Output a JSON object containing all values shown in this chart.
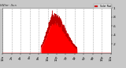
{
  "title_left": "kW/m² -Sun",
  "legend_label": "Solar Rad",
  "legend_color": "#ff0000",
  "bg_color": "#c8c8c8",
  "plot_bg_color": "#ffffff",
  "fill_color": "#ff0000",
  "line_color": "#bb0000",
  "grid_color": "#888888",
  "num_points": 1440,
  "peak_hour": 11.5,
  "peak_value": 0.9,
  "sunrise_hour": 8.5,
  "sunset_hour": 16.5,
  "ylim": [
    0,
    1.0
  ],
  "xlim": [
    0,
    1440
  ],
  "tick_hours": [
    0,
    2,
    4,
    6,
    8,
    10,
    12,
    14,
    16,
    18,
    20,
    22,
    24
  ],
  "tick_labels": [
    "12a",
    "2a",
    "4a",
    "6a",
    "8a",
    "10a",
    "12p",
    "2p",
    "4p",
    "6p",
    "8p",
    "10p",
    "12a"
  ],
  "yticks": [
    0.2,
    0.4,
    0.6,
    0.8,
    1.0
  ],
  "ytick_labels": [
    ".2",
    ".4",
    ".6",
    ".8",
    "1"
  ]
}
